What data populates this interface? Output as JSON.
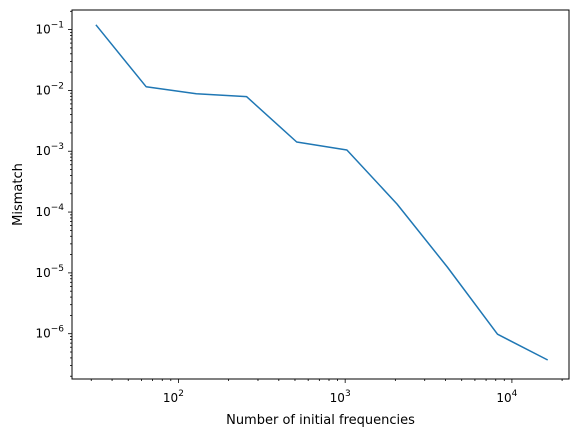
{
  "chart_data": {
    "type": "line",
    "title": "",
    "xlabel": "Number of initial frequencies",
    "ylabel": "Mismatch",
    "xscale": "log",
    "yscale": "log",
    "xlim": [
      23,
      22000
    ],
    "ylim": [
      1.8e-07,
      0.21
    ],
    "grid": false,
    "legend": "none",
    "series": [
      {
        "color": "#1f77b4",
        "x": [
          32,
          64,
          128,
          256,
          512,
          1024,
          2048,
          4096,
          8192,
          16384
        ],
        "y": [
          0.12,
          0.0115,
          0.0088,
          0.0079,
          0.00142,
          0.00105,
          0.000135,
          1.25e-05,
          9.8e-07,
          3.7e-07
        ]
      }
    ],
    "xticks": [
      {
        "value": 100,
        "base": "10",
        "exp": "2"
      },
      {
        "value": 1000,
        "base": "10",
        "exp": "3"
      },
      {
        "value": 10000,
        "base": "10",
        "exp": "4"
      }
    ],
    "yticks": [
      {
        "value": 1e-06,
        "base": "10",
        "exp": "−6"
      },
      {
        "value": 1e-05,
        "base": "10",
        "exp": "−5"
      },
      {
        "value": 0.0001,
        "base": "10",
        "exp": "−4"
      },
      {
        "value": 0.001,
        "base": "10",
        "exp": "−3"
      },
      {
        "value": 0.01,
        "base": "10",
        "exp": "−2"
      },
      {
        "value": 0.1,
        "base": "10",
        "exp": "−1"
      }
    ]
  }
}
